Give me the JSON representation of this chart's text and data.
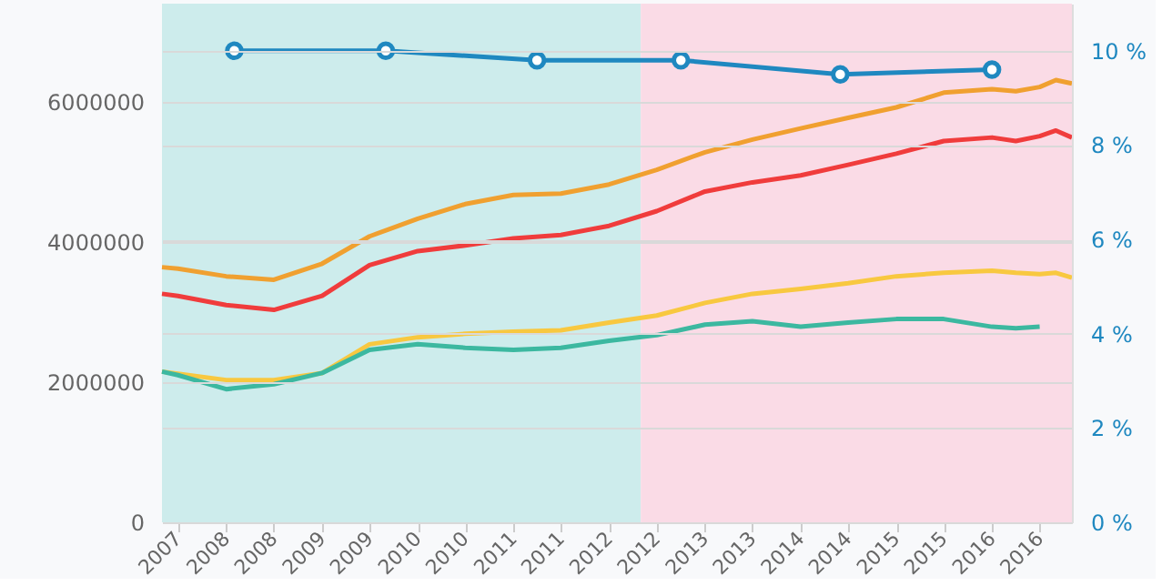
{
  "chart_data": {
    "type": "line",
    "xlim": [
      "2007-05",
      "2016-11"
    ],
    "ylim": [
      0,
      7400000
    ],
    "yticks": [
      0,
      2000000,
      4000000,
      6000000
    ],
    "y2lim": [
      0,
      11
    ],
    "y2ticks": [
      {
        "value": 0,
        "label": "0 %"
      },
      {
        "value": 2,
        "label": "2 %"
      },
      {
        "value": 4,
        "label": "4 %"
      },
      {
        "value": 6,
        "label": "6 %"
      },
      {
        "value": 8,
        "label": "8 %"
      },
      {
        "value": 10,
        "label": "10 %"
      }
    ],
    "xticks": [
      {
        "value": "2007-07",
        "label": "2007"
      },
      {
        "value": "2008-01",
        "label": "2008"
      },
      {
        "value": "2008-07",
        "label": "2008"
      },
      {
        "value": "2009-01",
        "label": "2009"
      },
      {
        "value": "2009-07",
        "label": "2009"
      },
      {
        "value": "2010-01",
        "label": "2010"
      },
      {
        "value": "2010-07",
        "label": "2010"
      },
      {
        "value": "2011-01",
        "label": "2011"
      },
      {
        "value": "2011-07",
        "label": "2011"
      },
      {
        "value": "2012-01",
        "label": "2012"
      },
      {
        "value": "2012-07",
        "label": "2012"
      },
      {
        "value": "2013-01",
        "label": "2013"
      },
      {
        "value": "2013-07",
        "label": "2013"
      },
      {
        "value": "2014-01",
        "label": "2014"
      },
      {
        "value": "2014-07",
        "label": "2014"
      },
      {
        "value": "2015-01",
        "label": "2015"
      },
      {
        "value": "2015-07",
        "label": "2015"
      },
      {
        "value": "2016-01",
        "label": "2016"
      },
      {
        "value": "2016-07",
        "label": "2016"
      }
    ],
    "grid": "y",
    "legend": false,
    "line_style": "solid",
    "bands": [
      {
        "axis": "x",
        "from": "2007-05",
        "to": "2012-05",
        "color": "#cdecec"
      },
      {
        "axis": "x",
        "from": "2012-05",
        "to": "2016-11",
        "color": "#fadbe6"
      }
    ],
    "series": [
      {
        "color": "#f0a030",
        "marker": "none",
        "x": [
          "2007-05",
          "2007-07",
          "2008-01",
          "2008-07",
          "2009-01",
          "2009-07",
          "2010-01",
          "2010-07",
          "2011-01",
          "2011-07",
          "2012-01",
          "2012-07",
          "2013-01",
          "2013-07",
          "2014-01",
          "2014-07",
          "2015-01",
          "2015-07",
          "2016-01",
          "2016-04",
          "2016-07",
          "2016-09",
          "2016-11"
        ],
        "values": [
          3640000,
          3620000,
          3510000,
          3460000,
          3690000,
          4080000,
          4330000,
          4540000,
          4670000,
          4690000,
          4820000,
          5030000,
          5280000,
          5460000,
          5620000,
          5770000,
          5920000,
          6130000,
          6180000,
          6150000,
          6210000,
          6310000,
          6260000
        ]
      },
      {
        "color": "#f03c3c",
        "marker": "none",
        "x": [
          "2007-05",
          "2007-07",
          "2008-01",
          "2008-07",
          "2009-01",
          "2009-07",
          "2010-01",
          "2010-07",
          "2011-01",
          "2011-07",
          "2012-01",
          "2012-07",
          "2013-01",
          "2013-07",
          "2014-01",
          "2014-07",
          "2015-01",
          "2015-07",
          "2016-01",
          "2016-04",
          "2016-07",
          "2016-09",
          "2016-11"
        ],
        "values": [
          3260000,
          3230000,
          3100000,
          3030000,
          3230000,
          3670000,
          3870000,
          3950000,
          4050000,
          4100000,
          4230000,
          4440000,
          4720000,
          4850000,
          4950000,
          5100000,
          5260000,
          5440000,
          5490000,
          5440000,
          5510000,
          5590000,
          5490000
        ]
      },
      {
        "color": "#f8c840",
        "marker": "none",
        "x": [
          "2007-05",
          "2007-07",
          "2008-01",
          "2008-07",
          "2009-01",
          "2009-07",
          "2010-01",
          "2010-07",
          "2011-01",
          "2011-07",
          "2012-01",
          "2012-07",
          "2013-01",
          "2013-07",
          "2014-01",
          "2014-07",
          "2015-01",
          "2015-07",
          "2016-01",
          "2016-04",
          "2016-07",
          "2016-09",
          "2016-11"
        ],
        "values": [
          2150000,
          2120000,
          2030000,
          2030000,
          2130000,
          2540000,
          2640000,
          2690000,
          2720000,
          2740000,
          2850000,
          2950000,
          3130000,
          3260000,
          3330000,
          3410000,
          3510000,
          3560000,
          3590000,
          3560000,
          3540000,
          3560000,
          3490000
        ]
      },
      {
        "color": "#3cb8a0",
        "marker": "none",
        "x": [
          "2007-05",
          "2007-07",
          "2008-01",
          "2008-07",
          "2009-01",
          "2009-07",
          "2010-01",
          "2010-07",
          "2011-01",
          "2011-07",
          "2012-01",
          "2012-07",
          "2013-01",
          "2013-07",
          "2014-01",
          "2014-07",
          "2015-01",
          "2015-07",
          "2016-01",
          "2016-04",
          "2016-07"
        ],
        "values": [
          2150000,
          2100000,
          1900000,
          1970000,
          2130000,
          2460000,
          2540000,
          2490000,
          2460000,
          2490000,
          2590000,
          2670000,
          2820000,
          2870000,
          2790000,
          2850000,
          2900000,
          2900000,
          2790000,
          2770000,
          2790000
        ]
      },
      {
        "color": "#1f88c0",
        "axis": "y2",
        "marker": "circle",
        "x": [
          "2008-02",
          "2009-09",
          "2011-04",
          "2012-10",
          "2014-06",
          "2016-01"
        ],
        "values": [
          10.0,
          10.0,
          9.8,
          9.8,
          9.5,
          9.6
        ]
      }
    ]
  }
}
